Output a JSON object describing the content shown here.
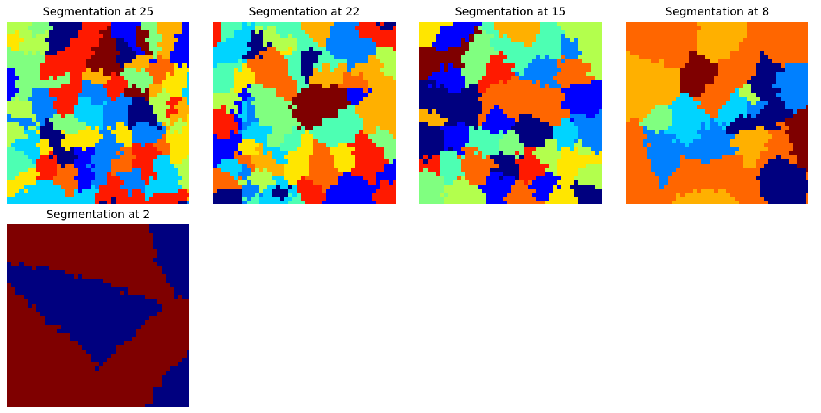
{
  "panels": [
    {
      "title": "Segmentation at 25",
      "segments": 25
    },
    {
      "title": "Segmentation at 22",
      "segments": 22
    },
    {
      "title": "Segmentation at 15",
      "segments": 15
    },
    {
      "title": "Segmentation at 8",
      "segments": 8
    },
    {
      "title": "Segmentation at 2",
      "segments": 2
    }
  ],
  "colormap": [
    "#00007f",
    "#0000ff",
    "#0080ff",
    "#00d4ff",
    "#4dffb3",
    "#80ff80",
    "#b3ff4d",
    "#ffe600",
    "#ffb000",
    "#ff6600",
    "#ff1a00",
    "#7f0000"
  ]
}
